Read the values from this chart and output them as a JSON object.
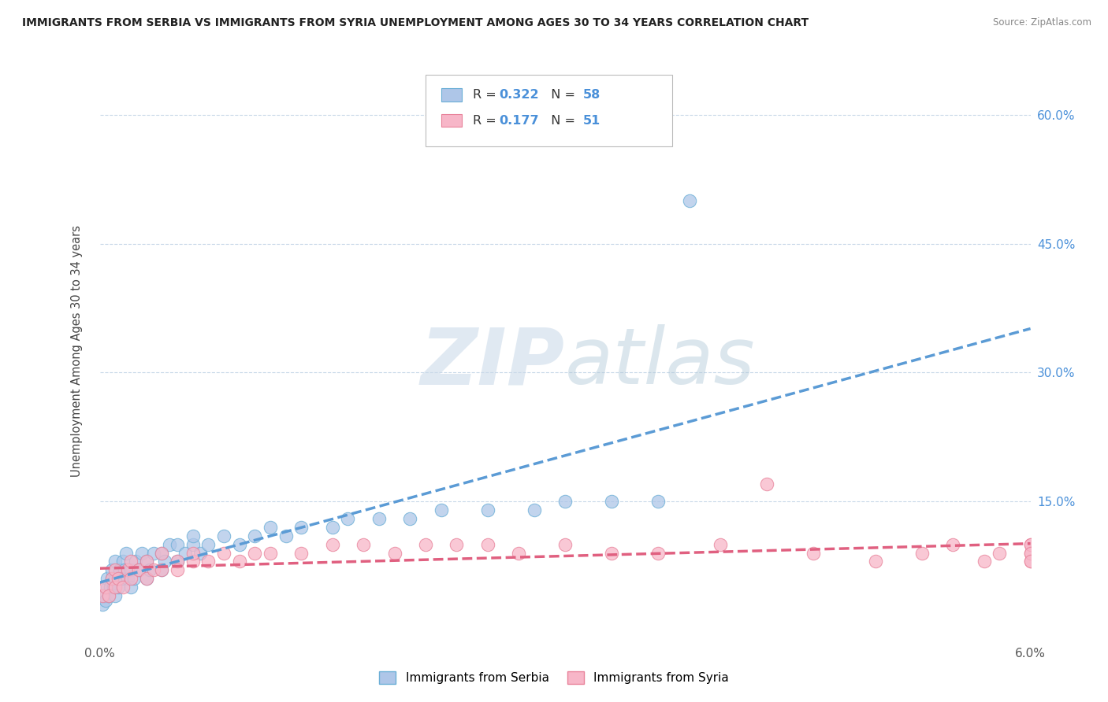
{
  "title": "IMMIGRANTS FROM SERBIA VS IMMIGRANTS FROM SYRIA UNEMPLOYMENT AMONG AGES 30 TO 34 YEARS CORRELATION CHART",
  "source": "Source: ZipAtlas.com",
  "ylabel": "Unemployment Among Ages 30 to 34 years",
  "y_tick_values": [
    0.15,
    0.3,
    0.45,
    0.6
  ],
  "y_tick_labels": [
    "15.0%",
    "30.0%",
    "45.0%",
    "60.0%"
  ],
  "x_lim": [
    0.0,
    0.06
  ],
  "y_lim": [
    -0.01,
    0.66
  ],
  "serbia_fill_color": "#aec6e8",
  "serbia_edge_color": "#6aaed6",
  "syria_fill_color": "#f7b6c8",
  "syria_edge_color": "#e8829a",
  "serbia_line_color": "#5b9bd5",
  "syria_line_color": "#e06080",
  "serbia_R": 0.322,
  "serbia_N": 58,
  "syria_R": 0.177,
  "syria_N": 51,
  "legend_entries": [
    "Immigrants from Serbia",
    "Immigrants from Syria"
  ],
  "watermark_zip": "ZIP",
  "watermark_atlas": "atlas",
  "background_color": "#ffffff",
  "grid_color": "#c8d8e8",
  "serbia_scatter_x": [
    0.0002,
    0.0003,
    0.0004,
    0.0005,
    0.0005,
    0.0006,
    0.0007,
    0.0008,
    0.0008,
    0.0009,
    0.001,
    0.001,
    0.001,
    0.0012,
    0.0013,
    0.0014,
    0.0015,
    0.0016,
    0.0017,
    0.0018,
    0.002,
    0.002,
    0.0022,
    0.0023,
    0.0025,
    0.0027,
    0.003,
    0.003,
    0.0032,
    0.0035,
    0.004,
    0.004,
    0.0042,
    0.0045,
    0.005,
    0.005,
    0.0055,
    0.006,
    0.006,
    0.0065,
    0.007,
    0.008,
    0.009,
    0.01,
    0.011,
    0.012,
    0.013,
    0.015,
    0.016,
    0.018,
    0.02,
    0.022,
    0.025,
    0.028,
    0.03,
    0.033,
    0.036,
    0.038
  ],
  "serbia_scatter_y": [
    0.03,
    0.04,
    0.035,
    0.05,
    0.06,
    0.04,
    0.05,
    0.06,
    0.07,
    0.05,
    0.04,
    0.06,
    0.08,
    0.05,
    0.07,
    0.06,
    0.08,
    0.07,
    0.09,
    0.06,
    0.05,
    0.07,
    0.06,
    0.08,
    0.07,
    0.09,
    0.06,
    0.08,
    0.07,
    0.09,
    0.07,
    0.09,
    0.08,
    0.1,
    0.08,
    0.1,
    0.09,
    0.1,
    0.11,
    0.09,
    0.1,
    0.11,
    0.1,
    0.11,
    0.12,
    0.11,
    0.12,
    0.12,
    0.13,
    0.13,
    0.13,
    0.14,
    0.14,
    0.14,
    0.15,
    0.15,
    0.15,
    0.5
  ],
  "syria_scatter_x": [
    0.0002,
    0.0004,
    0.0006,
    0.0008,
    0.001,
    0.001,
    0.0012,
    0.0015,
    0.0018,
    0.002,
    0.002,
    0.0025,
    0.003,
    0.003,
    0.0035,
    0.004,
    0.004,
    0.005,
    0.005,
    0.006,
    0.006,
    0.007,
    0.008,
    0.009,
    0.01,
    0.011,
    0.013,
    0.015,
    0.017,
    0.019,
    0.021,
    0.023,
    0.025,
    0.027,
    0.03,
    0.033,
    0.036,
    0.04,
    0.043,
    0.046,
    0.05,
    0.053,
    0.055,
    0.057,
    0.058,
    0.06,
    0.06,
    0.06,
    0.06,
    0.06,
    0.06
  ],
  "syria_scatter_y": [
    0.04,
    0.05,
    0.04,
    0.06,
    0.05,
    0.07,
    0.06,
    0.05,
    0.07,
    0.06,
    0.08,
    0.07,
    0.06,
    0.08,
    0.07,
    0.07,
    0.09,
    0.08,
    0.07,
    0.08,
    0.09,
    0.08,
    0.09,
    0.08,
    0.09,
    0.09,
    0.09,
    0.1,
    0.1,
    0.09,
    0.1,
    0.1,
    0.1,
    0.09,
    0.1,
    0.09,
    0.09,
    0.1,
    0.17,
    0.09,
    0.08,
    0.09,
    0.1,
    0.08,
    0.09,
    0.1,
    0.09,
    0.08,
    0.1,
    0.09,
    0.08
  ]
}
